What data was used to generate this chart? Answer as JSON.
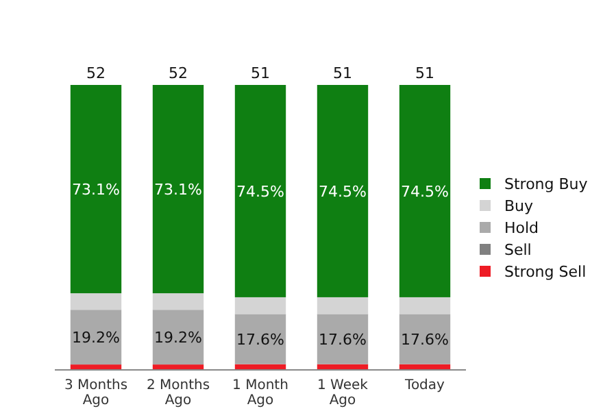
{
  "chart_data": {
    "type": "bar",
    "stacked": true,
    "categories": [
      "3 Months Ago",
      "2 Months Ago",
      "1 Month Ago",
      "1 Week Ago",
      "Today"
    ],
    "series": [
      {
        "name": "Strong Sell",
        "color": "#ee1c25",
        "values": [
          1.9,
          1.9,
          2.0,
          2.0,
          2.0
        ]
      },
      {
        "name": "Sell",
        "color": "#808080",
        "values": [
          0,
          0,
          0,
          0,
          0
        ]
      },
      {
        "name": "Hold",
        "color": "#aaaaaa",
        "values": [
          19.2,
          19.2,
          17.6,
          17.6,
          17.6
        ],
        "value_labels": [
          "19.2%",
          "19.2%",
          "17.6%",
          "17.6%",
          "17.6%"
        ]
      },
      {
        "name": "Buy",
        "color": "#d4d4d4",
        "values": [
          5.8,
          5.8,
          5.9,
          5.9,
          5.9
        ]
      },
      {
        "name": "Strong Buy",
        "color": "#0f7f12",
        "values": [
          73.1,
          73.1,
          74.5,
          74.5,
          74.5
        ],
        "value_labels": [
          "73.1%",
          "73.1%",
          "74.5%",
          "74.5%",
          "74.5%"
        ]
      }
    ],
    "annotations": [
      {
        "text": "52",
        "x": "3 Months Ago",
        "y": 100
      },
      {
        "text": "52",
        "x": "2 Months Ago",
        "y": 100
      },
      {
        "text": "51",
        "x": "1 Month Ago",
        "y": 100
      },
      {
        "text": "51",
        "x": "1 Week Ago",
        "y": 100
      },
      {
        "text": "51",
        "x": "Today",
        "y": 100
      }
    ],
    "legend": "right"
  }
}
